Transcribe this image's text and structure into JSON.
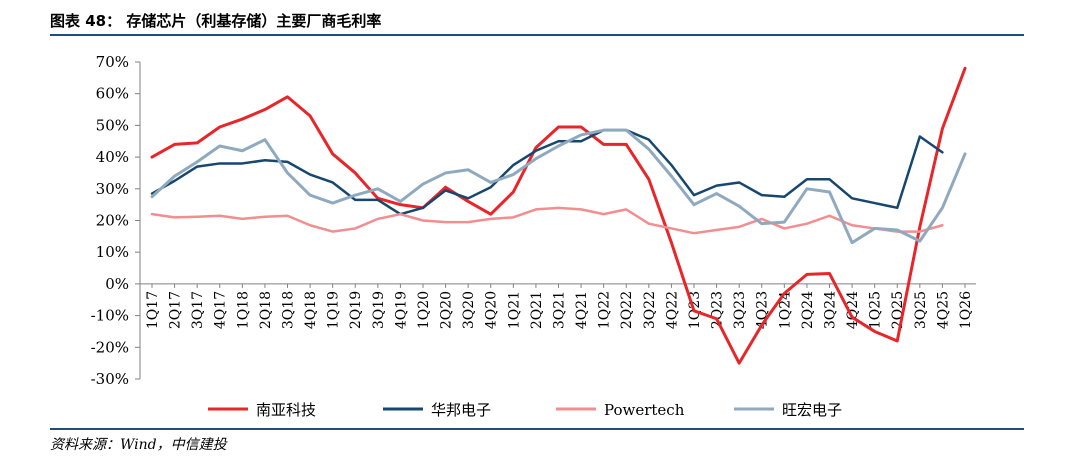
{
  "figure": {
    "title": "图表 48： 存储芯片（利基存储）主要厂商毛利率",
    "source": "资料来源：Wind，中信建投"
  },
  "chart_data": {
    "type": "line",
    "title": "",
    "xlabel": "",
    "ylabel": "",
    "ylim": [
      -30,
      70
    ],
    "y_ticks": [
      "70%",
      "60%",
      "50%",
      "40%",
      "30%",
      "20%",
      "10%",
      "0%",
      "-10%",
      "-20%",
      "-30%"
    ],
    "y_tick_values": [
      70,
      60,
      50,
      40,
      30,
      20,
      10,
      0,
      -10,
      -20,
      -30
    ],
    "grid": false,
    "legend_position": "bottom",
    "categories": [
      "1Q17",
      "2Q17",
      "3Q17",
      "4Q17",
      "1Q18",
      "2Q18",
      "3Q18",
      "4Q18",
      "1Q19",
      "2Q19",
      "3Q19",
      "4Q19",
      "1Q20",
      "2Q20",
      "3Q20",
      "4Q20",
      "1Q21",
      "2Q21",
      "3Q21",
      "4Q21",
      "1Q22",
      "2Q22",
      "3Q22",
      "4Q22",
      "1Q23",
      "2Q23",
      "3Q23",
      "4Q23",
      "1Q24",
      "2Q24",
      "3Q24",
      "4Q24",
      "1Q25",
      "2Q25",
      "3Q25",
      "4Q25",
      "1Q26"
    ],
    "series": [
      {
        "name": "南亚科技",
        "color": "#e8262a",
        "width": 3,
        "values": [
          40,
          44,
          44.5,
          49.5,
          52,
          55,
          59,
          53,
          41,
          35,
          27,
          25,
          24,
          30.5,
          26,
          22,
          29,
          43,
          49.5,
          49.5,
          44,
          44,
          33,
          13,
          -8.5,
          -11,
          -25,
          -13,
          -3,
          3,
          3.3,
          -10.5,
          -15,
          -18,
          18,
          49,
          68
        ]
      },
      {
        "name": "华邦电子",
        "color": "#17476e",
        "width": 2.5,
        "values": [
          28.5,
          32.5,
          37,
          38,
          38,
          39,
          38.5,
          34.5,
          32,
          26.5,
          26.5,
          22,
          24,
          29.5,
          27,
          30.5,
          37.5,
          42,
          45,
          45,
          48.5,
          48.5,
          45.5,
          37.5,
          28,
          31,
          32,
          28,
          27.5,
          33,
          33,
          27,
          25.5,
          24,
          46.5,
          41.5,
          null
        ]
      },
      {
        "name": "Powertech",
        "color": "#f28e90",
        "width": 2.5,
        "values": [
          22,
          21,
          21.2,
          21.5,
          20.5,
          21.2,
          21.5,
          18.5,
          16.5,
          17.5,
          20.5,
          22,
          20,
          19.5,
          19.5,
          20.5,
          21,
          23.5,
          24,
          23.5,
          22,
          23.5,
          19,
          17.5,
          16,
          17,
          18,
          20.5,
          17.5,
          19,
          21.5,
          18.5,
          17.5,
          16.5,
          16.5,
          18.5,
          null
        ]
      },
      {
        "name": "旺宏电子",
        "color": "#8fa9bf",
        "width": 3,
        "values": [
          27.5,
          34,
          38.5,
          43.5,
          42,
          45.5,
          35,
          28,
          25.5,
          28,
          30,
          26,
          31.5,
          35,
          36,
          32,
          34.5,
          39.5,
          43.5,
          47,
          48.5,
          48.5,
          42.5,
          34,
          25,
          28.5,
          24.5,
          19,
          19.5,
          30,
          29,
          13,
          17.5,
          17,
          13.5,
          24,
          41
        ]
      }
    ]
  }
}
